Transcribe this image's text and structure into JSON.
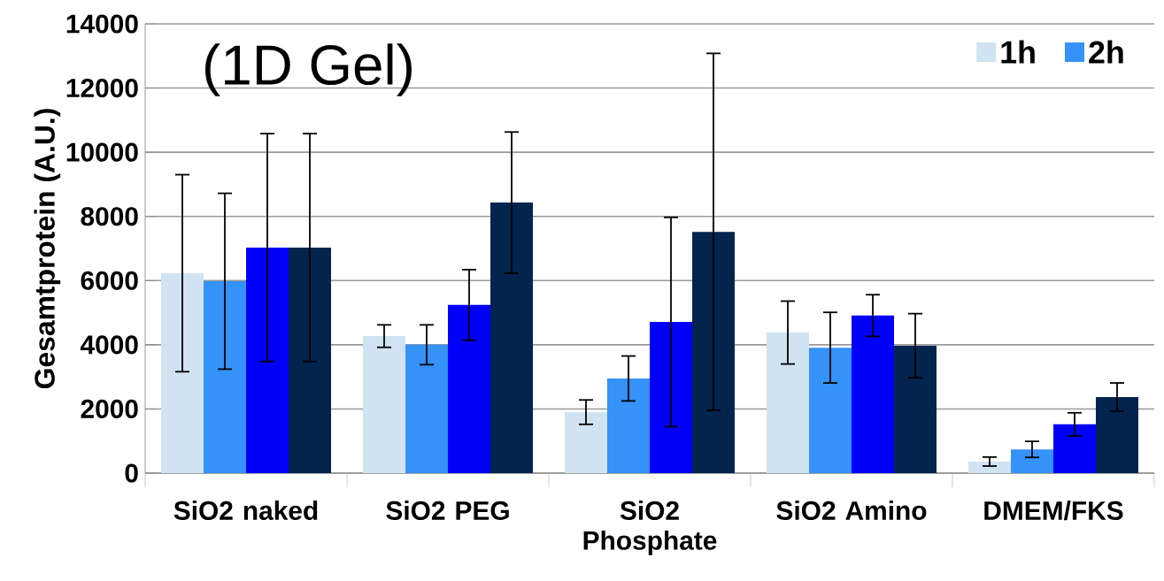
{
  "chart_data": {
    "type": "bar",
    "ylabel": "Gesamtprotein (A.U.)",
    "categories": [
      "SiO2 naked",
      "SiO2 PEG",
      "SiO2 Phosphate",
      "SiO2 Amino",
      "DMEM/FKS"
    ],
    "series": [
      {
        "name": "1h",
        "color": "#d0e3f0",
        "values": [
          6230,
          4270,
          1900,
          4380,
          360
        ],
        "errors": [
          3070,
          350,
          380,
          980,
          140
        ]
      },
      {
        "name": "2h",
        "color": "#3592f8",
        "values": [
          5980,
          4000,
          2950,
          3910,
          740
        ],
        "errors": [
          2740,
          620,
          700,
          1100,
          250
        ]
      },
      {
        "color": "#0000fa",
        "values": [
          7030,
          5240,
          4710,
          4910,
          1520
        ],
        "errors": [
          3550,
          1100,
          3260,
          650,
          360
        ]
      },
      {
        "color": "#03244f",
        "values": [
          7030,
          8430,
          7520,
          3970,
          2370
        ],
        "errors": [
          3550,
          2200,
          5560,
          1000,
          440
        ]
      }
    ],
    "ylim": [
      0,
      14000
    ],
    "yticks": [
      0,
      2000,
      4000,
      6000,
      8000,
      10000,
      12000,
      14000
    ],
    "grid": "y",
    "legend": "top right",
    "annotations": [
      "(1D Gel)"
    ]
  }
}
